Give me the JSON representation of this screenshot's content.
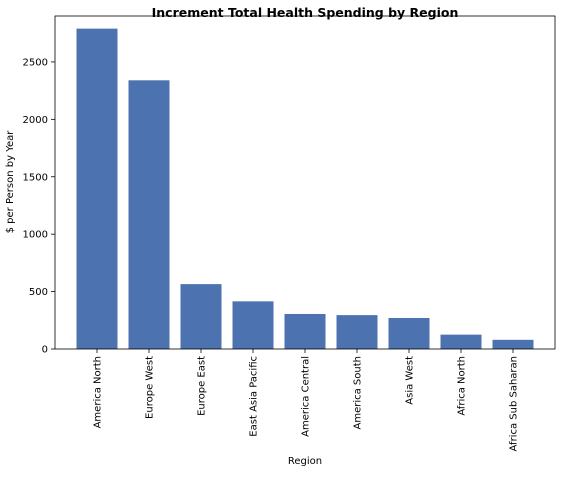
{
  "chart_data": {
    "type": "bar",
    "title": "Increment Total Health Spending by Region",
    "xlabel": "Region",
    "ylabel": "$ per Person by Year",
    "categories": [
      "America North",
      "Europe West",
      "Europe East",
      "East Asia Pacific",
      "America Central",
      "America South",
      "Asia West",
      "Africa North",
      "Africa Sub Saharan"
    ],
    "values": [
      2790,
      2340,
      565,
      415,
      305,
      295,
      270,
      125,
      80
    ],
    "ylim": [
      0,
      2900
    ],
    "yticks": [
      0,
      500,
      1000,
      1500,
      2000,
      2500
    ],
    "bar_color": "#4c72b0",
    "grid": false
  }
}
